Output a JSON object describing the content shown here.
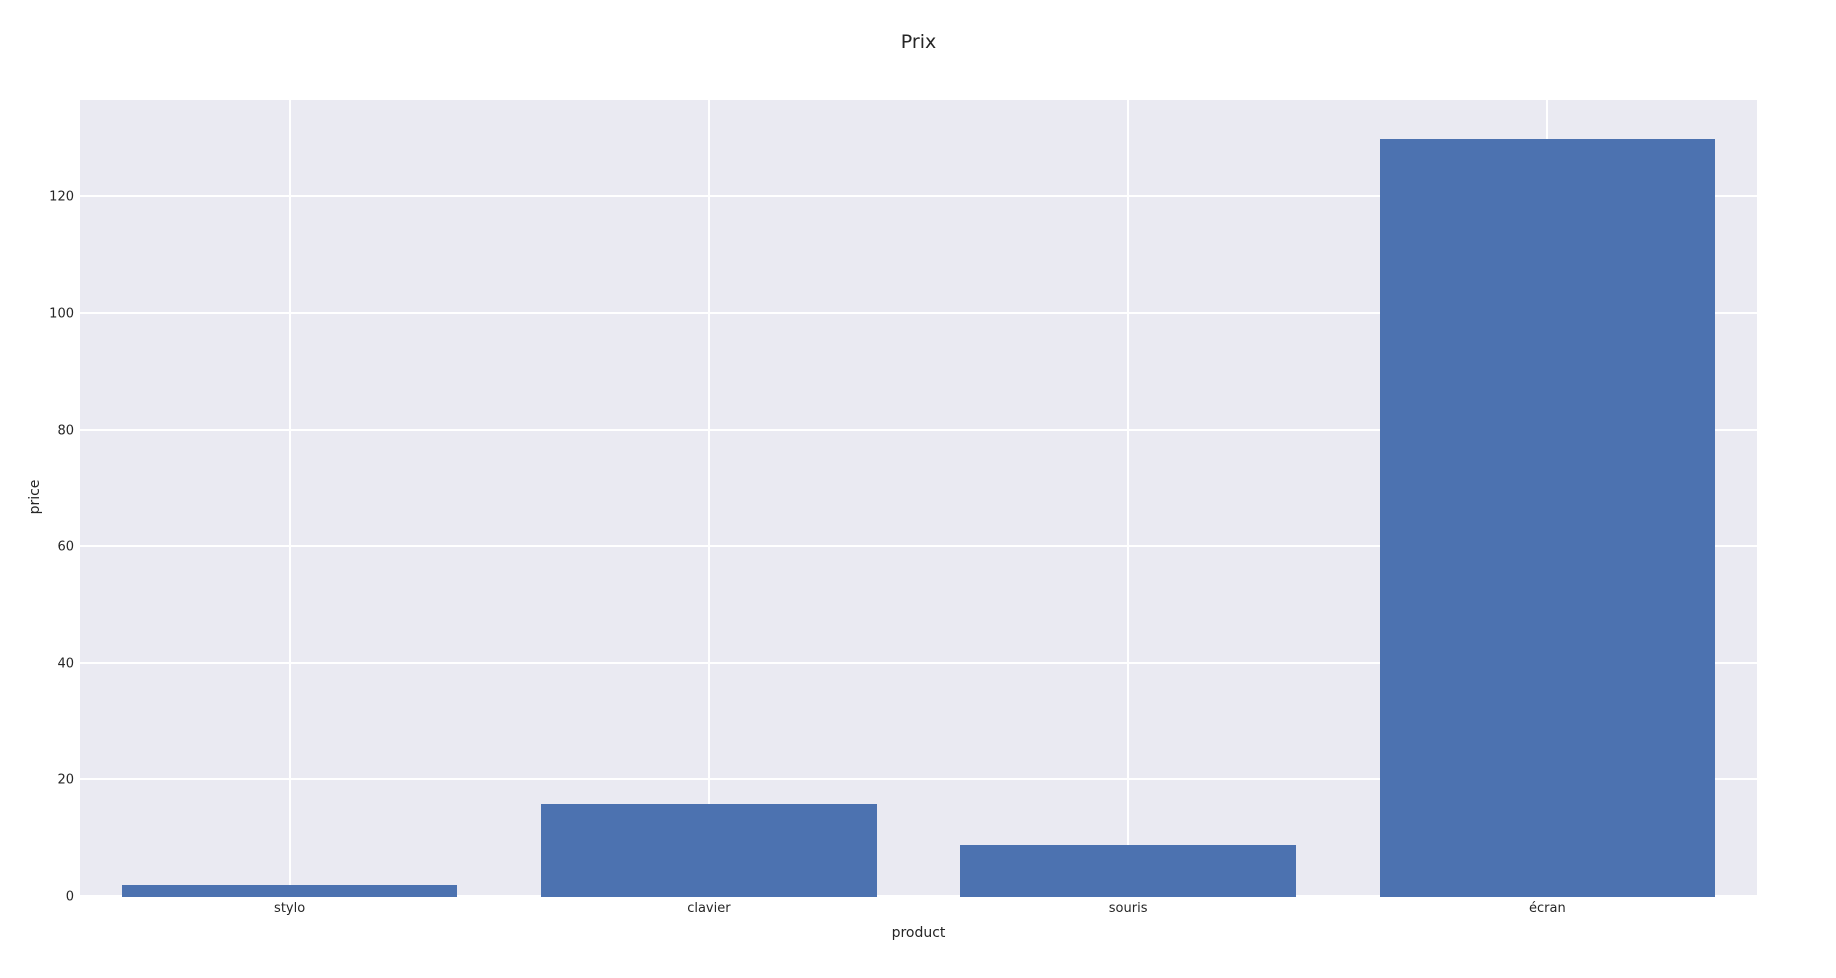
{
  "chart_data": {
    "type": "bar",
    "title": "Prix",
    "xlabel": "product",
    "ylabel": "price",
    "categories": [
      "stylo",
      "clavier",
      "souris",
      "écran"
    ],
    "values": [
      2,
      16,
      9,
      130
    ],
    "y_ticks": [
      0,
      20,
      40,
      60,
      80,
      100,
      120
    ],
    "ylim": [
      0,
      136.7
    ],
    "grid": "on",
    "legend": "none",
    "bar_width_fraction": 0.8,
    "style": {
      "bar_color": "#4c72b0",
      "plot_background": "#eaeaf2",
      "grid_color": "#ffffff",
      "figure_background": "#ffffff",
      "text_color": "#262626"
    }
  }
}
